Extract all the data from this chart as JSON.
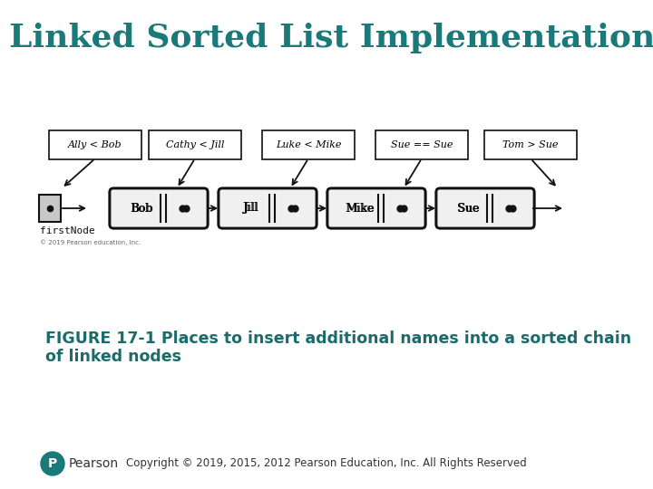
{
  "title": "Linked Sorted List Implementation",
  "title_color": "#1a7a7a",
  "title_fontsize": 26,
  "bg_color": "#ffffff",
  "figure_caption_line1": "FIGURE 17-1 Places to insert additional names into a sorted chain",
  "figure_caption_line2": "of linked nodes",
  "caption_color": "#1a6b6b",
  "caption_fontsize": 12.5,
  "copyright_text": "Copyright © 2019, 2015, 2012 Pearson Education, Inc. All Rights Reserved",
  "copyright_fontsize": 8.5,
  "firstnode_label": "firstNode",
  "pearson_text": "Pearson",
  "nodes": [
    "Bob",
    "Jill",
    "Mike",
    "Sue"
  ],
  "labels": [
    "Ally < Bob",
    "Cathy < Jill",
    "Luke < Mike",
    "Sue == Sue",
    "Tom > Sue"
  ],
  "arrow_color": "#111111",
  "box_edge_color": "#111111",
  "node_fill_left": "#e8e8e8",
  "node_fill_right": "#e8e8e8",
  "node_fill_white": "#ffffff",
  "first_box_fill": "#c8c8c8",
  "dot_color": "#111111",
  "small_copyright": "© 2019 Pearson education, Inc.",
  "pearson_logo_color": "#1a7a7a",
  "node_fill": "#f0f0f0"
}
